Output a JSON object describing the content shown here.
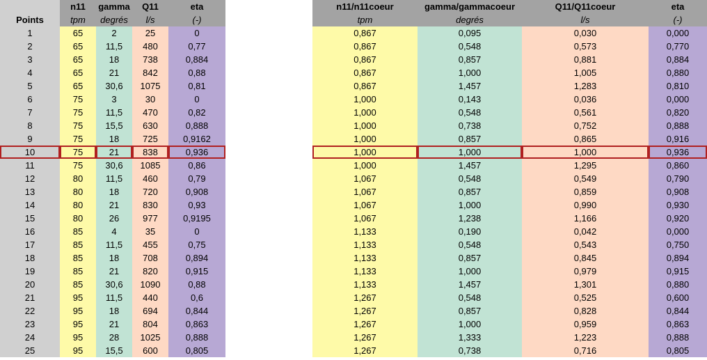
{
  "left": {
    "headers": [
      "Points",
      "n11",
      "gamma",
      "Q11",
      "eta"
    ],
    "units": [
      "",
      "tpm",
      "degrés",
      "l/s",
      "(-)"
    ],
    "rows": [
      [
        "1",
        "65",
        "2",
        "25",
        "0"
      ],
      [
        "2",
        "65",
        "11,5",
        "480",
        "0,77"
      ],
      [
        "3",
        "65",
        "18",
        "738",
        "0,884"
      ],
      [
        "4",
        "65",
        "21",
        "842",
        "0,88"
      ],
      [
        "5",
        "65",
        "30,6",
        "1075",
        "0,81"
      ],
      [
        "6",
        "75",
        "3",
        "30",
        "0"
      ],
      [
        "7",
        "75",
        "11,5",
        "470",
        "0,82"
      ],
      [
        "8",
        "75",
        "15,5",
        "630",
        "0,888"
      ],
      [
        "9",
        "75",
        "18",
        "725",
        "0,9162"
      ],
      [
        "10",
        "75",
        "21",
        "838",
        "0,936"
      ],
      [
        "11",
        "75",
        "30,6",
        "1085",
        "0,86"
      ],
      [
        "12",
        "80",
        "11,5",
        "460",
        "0,79"
      ],
      [
        "13",
        "80",
        "18",
        "720",
        "0,908"
      ],
      [
        "14",
        "80",
        "21",
        "830",
        "0,93"
      ],
      [
        "15",
        "80",
        "26",
        "977",
        "0,9195"
      ],
      [
        "16",
        "85",
        "4",
        "35",
        "0"
      ],
      [
        "17",
        "85",
        "11,5",
        "455",
        "0,75"
      ],
      [
        "18",
        "85",
        "18",
        "708",
        "0,894"
      ],
      [
        "19",
        "85",
        "21",
        "820",
        "0,915"
      ],
      [
        "20",
        "85",
        "30,6",
        "1090",
        "0,88"
      ],
      [
        "21",
        "95",
        "11,5",
        "440",
        "0,6"
      ],
      [
        "22",
        "95",
        "18",
        "694",
        "0,844"
      ],
      [
        "23",
        "95",
        "21",
        "804",
        "0,863"
      ],
      [
        "24",
        "95",
        "28",
        "1025",
        "0,888"
      ],
      [
        "25",
        "95",
        "15,5",
        "600",
        "0,805"
      ]
    ]
  },
  "right": {
    "headers": [
      "n11/n11coeur",
      "gamma/gammacoeur",
      "Q11/Q11coeur",
      "eta"
    ],
    "units": [
      "tpm",
      "degrés",
      "l/s",
      "(-)"
    ],
    "rows": [
      [
        "0,867",
        "0,095",
        "0,030",
        "0,000"
      ],
      [
        "0,867",
        "0,548",
        "0,573",
        "0,770"
      ],
      [
        "0,867",
        "0,857",
        "0,881",
        "0,884"
      ],
      [
        "0,867",
        "1,000",
        "1,005",
        "0,880"
      ],
      [
        "0,867",
        "1,457",
        "1,283",
        "0,810"
      ],
      [
        "1,000",
        "0,143",
        "0,036",
        "0,000"
      ],
      [
        "1,000",
        "0,548",
        "0,561",
        "0,820"
      ],
      [
        "1,000",
        "0,738",
        "0,752",
        "0,888"
      ],
      [
        "1,000",
        "0,857",
        "0,865",
        "0,916"
      ],
      [
        "1,000",
        "1,000",
        "1,000",
        "0,936"
      ],
      [
        "1,000",
        "1,457",
        "1,295",
        "0,860"
      ],
      [
        "1,067",
        "0,548",
        "0,549",
        "0,790"
      ],
      [
        "1,067",
        "0,857",
        "0,859",
        "0,908"
      ],
      [
        "1,067",
        "1,000",
        "0,990",
        "0,930"
      ],
      [
        "1,067",
        "1,238",
        "1,166",
        "0,920"
      ],
      [
        "1,133",
        "0,190",
        "0,042",
        "0,000"
      ],
      [
        "1,133",
        "0,548",
        "0,543",
        "0,750"
      ],
      [
        "1,133",
        "0,857",
        "0,845",
        "0,894"
      ],
      [
        "1,133",
        "1,000",
        "0,979",
        "0,915"
      ],
      [
        "1,133",
        "1,457",
        "1,301",
        "0,880"
      ],
      [
        "1,267",
        "0,548",
        "0,525",
        "0,600"
      ],
      [
        "1,267",
        "0,857",
        "0,828",
        "0,844"
      ],
      [
        "1,267",
        "1,000",
        "0,959",
        "0,863"
      ],
      [
        "1,267",
        "1,333",
        "1,223",
        "0,888"
      ],
      [
        "1,267",
        "0,738",
        "0,716",
        "0,805"
      ]
    ]
  },
  "highlight_row_index": 9,
  "colors": {
    "header_bg": "#a3a3a3",
    "points_bg": "#d0d0d0",
    "n11_bg": "#fefaa8",
    "gamma_bg": "#c1e3d4",
    "q11_bg": "#fed9c4",
    "eta_bg": "#b7a8d4",
    "highlight_border": "#b02020"
  }
}
